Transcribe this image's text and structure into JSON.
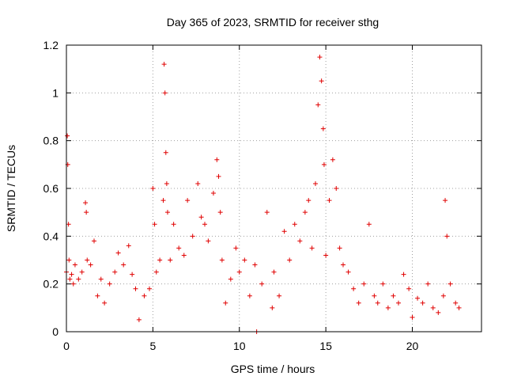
{
  "chart_data": {
    "type": "scatter",
    "title": "Day 365 of 2023, SRMTID for receiver sthg",
    "xlabel": "GPS time / hours",
    "ylabel": "SRMTID / TECUs",
    "xlim": [
      0,
      24
    ],
    "ylim": [
      0,
      1.2
    ],
    "x_ticks": [
      0,
      5,
      10,
      15,
      20
    ],
    "x_tick_labels": [
      "0",
      "5",
      "10",
      "15",
      "20"
    ],
    "y_ticks": [
      0,
      0.2,
      0.4,
      0.6,
      0.8,
      1.0,
      1.2
    ],
    "y_tick_labels": [
      "0",
      "0.2",
      "0.4",
      "0.6",
      "0.8",
      "1",
      "1.2"
    ],
    "grid": true,
    "marker": "plus",
    "series": [
      {
        "name": "SRMTID",
        "color": "#e00000",
        "x": [
          0.0,
          0.05,
          0.08,
          0.12,
          0.15,
          0.2,
          0.3,
          0.4,
          0.5,
          0.7,
          0.9,
          1.1,
          1.15,
          1.2,
          1.4,
          1.6,
          1.8,
          2.0,
          2.2,
          2.5,
          2.8,
          3.0,
          3.3,
          3.6,
          3.8,
          4.0,
          4.2,
          4.5,
          4.8,
          5.0,
          5.1,
          5.2,
          5.4,
          5.6,
          5.65,
          5.7,
          5.75,
          5.8,
          5.85,
          6.0,
          6.2,
          6.5,
          6.8,
          7.0,
          7.3,
          7.6,
          7.8,
          8.0,
          8.2,
          8.5,
          8.7,
          8.8,
          8.9,
          9.0,
          9.2,
          9.5,
          9.8,
          10.0,
          10.3,
          10.6,
          10.9,
          11.0,
          11.3,
          11.6,
          11.9,
          12.0,
          12.3,
          12.6,
          12.9,
          13.2,
          13.5,
          13.8,
          14.0,
          14.2,
          14.4,
          14.55,
          14.65,
          14.75,
          14.85,
          14.9,
          15.0,
          15.2,
          15.4,
          15.6,
          15.8,
          16.0,
          16.3,
          16.6,
          16.9,
          17.2,
          17.5,
          17.8,
          18.0,
          18.3,
          18.6,
          18.9,
          19.2,
          19.5,
          19.8,
          20.0,
          20.3,
          20.6,
          20.9,
          21.2,
          21.5,
          21.8,
          21.9,
          22.0,
          22.2,
          22.5,
          22.7
        ],
        "y": [
          0.25,
          0.82,
          0.7,
          0.45,
          0.3,
          0.22,
          0.24,
          0.2,
          0.28,
          0.22,
          0.25,
          0.54,
          0.5,
          0.3,
          0.28,
          0.38,
          0.15,
          0.22,
          0.12,
          0.2,
          0.25,
          0.33,
          0.28,
          0.36,
          0.24,
          0.18,
          0.05,
          0.15,
          0.18,
          0.6,
          0.45,
          0.25,
          0.3,
          0.55,
          1.12,
          1.0,
          0.75,
          0.62,
          0.5,
          0.3,
          0.45,
          0.35,
          0.32,
          0.55,
          0.4,
          0.62,
          0.48,
          0.45,
          0.38,
          0.58,
          0.72,
          0.65,
          0.5,
          0.3,
          0.12,
          0.22,
          0.35,
          0.25,
          0.3,
          0.15,
          0.28,
          0.0,
          0.2,
          0.5,
          0.1,
          0.25,
          0.15,
          0.42,
          0.3,
          0.45,
          0.38,
          0.5,
          0.55,
          0.35,
          0.62,
          0.95,
          1.15,
          1.05,
          0.85,
          0.7,
          0.32,
          0.55,
          0.72,
          0.6,
          0.35,
          0.28,
          0.25,
          0.18,
          0.12,
          0.2,
          0.45,
          0.15,
          0.12,
          0.2,
          0.1,
          0.15,
          0.12,
          0.24,
          0.18,
          0.06,
          0.14,
          0.12,
          0.2,
          0.1,
          0.08,
          0.15,
          0.55,
          0.4,
          0.2,
          0.12,
          0.1
        ]
      }
    ],
    "annotations": []
  }
}
